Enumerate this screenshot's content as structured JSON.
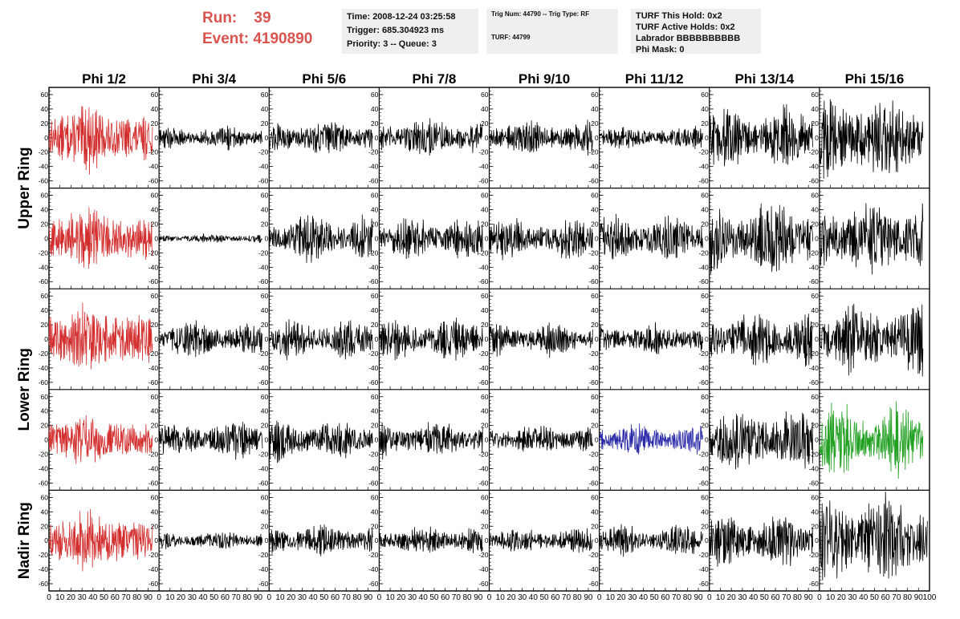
{
  "header": {
    "run_label": "Run:",
    "run_value": "39",
    "event_label": "Event:",
    "event_value": "4190890"
  },
  "info_box_1": {
    "time": "Time: 2008-12-24 03:25:58",
    "trigger": "Trigger: 685.304923 ms",
    "priority": "Priority: 3 -- Queue: 3"
  },
  "info_box_2": {
    "trig": "Trig Num: 44790 -- Trig Type: RF",
    "turf": "TURF: 44799"
  },
  "info_box_3": {
    "this_hold": "TURF This Hold: 0x2",
    "active_holds": "TURF Active Holds: 0x2",
    "labrador": "Labrador BBBBBBBBBB",
    "phi_mask": "Phi Mask: 0"
  },
  "chart_data": {
    "type": "line",
    "columns": [
      "Phi 1/2",
      "Phi 3/4",
      "Phi 5/6",
      "Phi 7/8",
      "Phi 9/10",
      "Phi 11/12",
      "Phi 13/14",
      "Phi 15/16"
    ],
    "ring_labels": [
      {
        "label": "Upper Ring",
        "rows": [
          0,
          1
        ]
      },
      {
        "label": "Lower Ring",
        "rows": [
          2,
          3
        ]
      },
      {
        "label": "Nadir Ring",
        "rows": [
          4
        ]
      }
    ],
    "rows": 5,
    "xlim": [
      0,
      100
    ],
    "ylim": [
      -70,
      70
    ],
    "x_ticks": [
      "0",
      "10",
      "20",
      "30",
      "40",
      "50",
      "60",
      "70",
      "80",
      "90",
      "100"
    ],
    "y_ticks": [
      60,
      40,
      20,
      0,
      -20,
      -40,
      -60
    ],
    "colors": {
      "default": "#000000",
      "red": "#d32f2f",
      "blue": "#2a2aa8",
      "green": "#22a022"
    },
    "panels": [
      {
        "row": 0,
        "col": 0,
        "color": "red",
        "amp": 24,
        "x_end": 94
      },
      {
        "row": 0,
        "col": 1,
        "color": "default",
        "amp": 10,
        "x_end": 94
      },
      {
        "row": 0,
        "col": 2,
        "color": "default",
        "amp": 15,
        "x_end": 94
      },
      {
        "row": 0,
        "col": 3,
        "color": "default",
        "amp": 17,
        "x_end": 94
      },
      {
        "row": 0,
        "col": 4,
        "color": "default",
        "amp": 14,
        "x_end": 94
      },
      {
        "row": 0,
        "col": 5,
        "color": "default",
        "amp": 10,
        "x_end": 94
      },
      {
        "row": 0,
        "col": 6,
        "color": "default",
        "amp": 26,
        "x_end": 94
      },
      {
        "row": 0,
        "col": 7,
        "color": "default",
        "amp": 38,
        "x_end": 94
      },
      {
        "row": 1,
        "col": 0,
        "color": "red",
        "amp": 24,
        "x_end": 94
      },
      {
        "row": 1,
        "col": 1,
        "color": "default",
        "amp": 4,
        "x_end": 94
      },
      {
        "row": 1,
        "col": 2,
        "color": "default",
        "amp": 20,
        "x_end": 94
      },
      {
        "row": 1,
        "col": 3,
        "color": "default",
        "amp": 18,
        "x_end": 94
      },
      {
        "row": 1,
        "col": 4,
        "color": "default",
        "amp": 18,
        "x_end": 94
      },
      {
        "row": 1,
        "col": 5,
        "color": "default",
        "amp": 20,
        "x_end": 94
      },
      {
        "row": 1,
        "col": 6,
        "color": "default",
        "amp": 32,
        "x_end": 94
      },
      {
        "row": 1,
        "col": 7,
        "color": "default",
        "amp": 34,
        "x_end": 94
      },
      {
        "row": 2,
        "col": 0,
        "color": "red",
        "amp": 26,
        "x_end": 94
      },
      {
        "row": 2,
        "col": 1,
        "color": "default",
        "amp": 15,
        "x_end": 94
      },
      {
        "row": 2,
        "col": 2,
        "color": "default",
        "amp": 18,
        "x_end": 94
      },
      {
        "row": 2,
        "col": 3,
        "color": "default",
        "amp": 18,
        "x_end": 94
      },
      {
        "row": 2,
        "col": 4,
        "color": "default",
        "amp": 14,
        "x_end": 94
      },
      {
        "row": 2,
        "col": 5,
        "color": "default",
        "amp": 13,
        "x_end": 94
      },
      {
        "row": 2,
        "col": 6,
        "color": "default",
        "amp": 24,
        "x_end": 94
      },
      {
        "row": 2,
        "col": 7,
        "color": "default",
        "amp": 30,
        "x_end": 94
      },
      {
        "row": 3,
        "col": 0,
        "color": "red",
        "amp": 20,
        "x_end": 94
      },
      {
        "row": 3,
        "col": 1,
        "color": "default",
        "amp": 16,
        "x_end": 94
      },
      {
        "row": 3,
        "col": 2,
        "color": "default",
        "amp": 17,
        "x_end": 94
      },
      {
        "row": 3,
        "col": 3,
        "color": "default",
        "amp": 16,
        "x_end": 94
      },
      {
        "row": 3,
        "col": 4,
        "color": "default",
        "amp": 13,
        "x_end": 94
      },
      {
        "row": 3,
        "col": 5,
        "color": "blue",
        "amp": 14,
        "x_end": 94
      },
      {
        "row": 3,
        "col": 6,
        "color": "default",
        "amp": 27,
        "x_end": 94
      },
      {
        "row": 3,
        "col": 7,
        "color": "green",
        "amp": 30,
        "x_end": 94
      },
      {
        "row": 4,
        "col": 0,
        "color": "red",
        "amp": 24,
        "x_end": 94
      },
      {
        "row": 4,
        "col": 1,
        "color": "default",
        "amp": 8,
        "x_end": 94
      },
      {
        "row": 4,
        "col": 2,
        "color": "default",
        "amp": 14,
        "x_end": 94
      },
      {
        "row": 4,
        "col": 3,
        "color": "default",
        "amp": 12,
        "x_end": 94
      },
      {
        "row": 4,
        "col": 4,
        "color": "default",
        "amp": 11,
        "x_end": 94
      },
      {
        "row": 4,
        "col": 5,
        "color": "default",
        "amp": 13,
        "x_end": 94
      },
      {
        "row": 4,
        "col": 6,
        "color": "default",
        "amp": 22,
        "x_end": 94
      },
      {
        "row": 4,
        "col": 7,
        "color": "default",
        "amp": 40,
        "x_end": 98
      }
    ]
  }
}
